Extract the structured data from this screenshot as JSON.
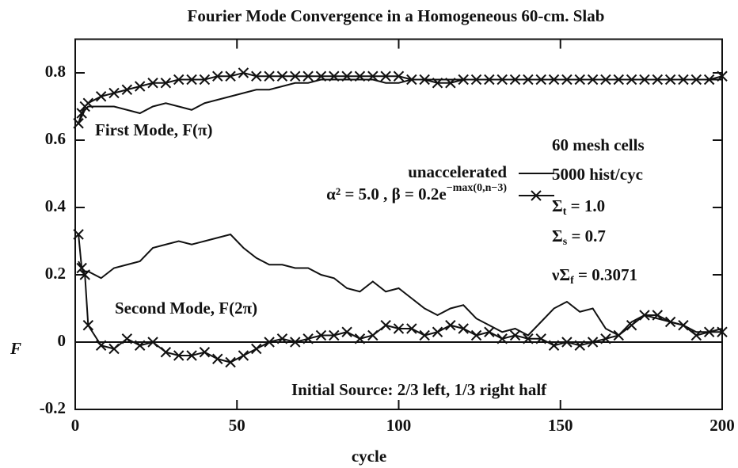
{
  "chart_data": {
    "type": "line",
    "title": "Fourier Mode Convergence in a Homogeneous 60-cm. Slab",
    "xlabel": "cycle",
    "ylabel": "F",
    "x": [
      1,
      2,
      3,
      4,
      8,
      12,
      16,
      20,
      24,
      28,
      32,
      36,
      40,
      44,
      48,
      52,
      56,
      60,
      64,
      68,
      72,
      76,
      80,
      84,
      88,
      92,
      96,
      100,
      104,
      108,
      112,
      116,
      120,
      124,
      128,
      132,
      136,
      140,
      144,
      148,
      152,
      156,
      160,
      164,
      168,
      172,
      176,
      180,
      184,
      188,
      192,
      196,
      200
    ],
    "series": [
      {
        "name": "unaccelerated",
        "color": "#111111",
        "marker": "none",
        "values": [
          0.65,
          0.67,
          0.69,
          0.7,
          0.7,
          0.7,
          0.69,
          0.68,
          0.7,
          0.71,
          0.7,
          0.69,
          0.71,
          0.72,
          0.73,
          0.74,
          0.75,
          0.75,
          0.76,
          0.77,
          0.77,
          0.78,
          0.78,
          0.78,
          0.78,
          0.78,
          0.77,
          0.77,
          0.78,
          0.78,
          0.78,
          0.78,
          0.78,
          0.78,
          0.78,
          0.78,
          0.78,
          0.78,
          0.78,
          0.78,
          0.78,
          0.78,
          0.78,
          0.78,
          0.78,
          0.78,
          0.78,
          0.78,
          0.78,
          0.78,
          0.78,
          0.78,
          0.78
        ]
      },
      {
        "name": "α² = 5.0 ,  β = 0.2e",
        "name_sup": "−max(0,n−3)",
        "color": "#111111",
        "marker": "x",
        "values": [
          0.65,
          0.68,
          0.7,
          0.71,
          0.73,
          0.74,
          0.75,
          0.76,
          0.77,
          0.77,
          0.78,
          0.78,
          0.78,
          0.79,
          0.79,
          0.8,
          0.79,
          0.79,
          0.79,
          0.79,
          0.79,
          0.79,
          0.79,
          0.79,
          0.79,
          0.79,
          0.79,
          0.79,
          0.78,
          0.78,
          0.77,
          0.77,
          0.78,
          0.78,
          0.78,
          0.78,
          0.78,
          0.78,
          0.78,
          0.78,
          0.78,
          0.78,
          0.78,
          0.78,
          0.78,
          0.78,
          0.78,
          0.78,
          0.78,
          0.78,
          0.78,
          0.78,
          0.79
        ]
      },
      {
        "name": "unaccelerated",
        "color": "#111111",
        "marker": "none",
        "values": [
          0.24,
          0.22,
          0.21,
          0.21,
          0.19,
          0.22,
          0.23,
          0.24,
          0.28,
          0.29,
          0.3,
          0.29,
          0.3,
          0.31,
          0.32,
          0.28,
          0.25,
          0.23,
          0.23,
          0.22,
          0.22,
          0.2,
          0.19,
          0.16,
          0.15,
          0.18,
          0.15,
          0.16,
          0.13,
          0.1,
          0.08,
          0.1,
          0.11,
          0.07,
          0.05,
          0.03,
          0.04,
          0.02,
          0.06,
          0.1,
          0.12,
          0.09,
          0.1,
          0.04,
          0.02,
          0.06,
          0.08,
          0.07,
          0.06,
          0.05,
          0.03,
          0.03,
          0.04
        ]
      },
      {
        "name": "α² = 5.0 ,  β = 0.2e",
        "name_sup": "−max(0,n−3)",
        "color": "#111111",
        "marker": "x",
        "values": [
          0.32,
          0.22,
          0.2,
          0.05,
          -0.01,
          -0.02,
          0.01,
          -0.01,
          0,
          -0.03,
          -0.04,
          -0.04,
          -0.03,
          -0.05,
          -0.06,
          -0.04,
          -0.02,
          0,
          0.01,
          0,
          0.01,
          0.02,
          0.02,
          0.03,
          0.01,
          0.02,
          0.05,
          0.04,
          0.04,
          0.02,
          0.03,
          0.05,
          0.04,
          0.02,
          0.03,
          0.01,
          0.02,
          0.01,
          0.01,
          -0.01,
          0,
          -0.01,
          0,
          0.01,
          0.02,
          0.05,
          0.08,
          0.08,
          0.06,
          0.05,
          0.02,
          0.03,
          0.03
        ]
      }
    ],
    "xlim": [
      0,
      200
    ],
    "ylim": [
      -0.2,
      0.9
    ],
    "xticks": [
      0,
      50,
      100,
      150,
      200
    ],
    "yticks": [
      -0.2,
      0,
      0.2,
      0.4,
      0.6,
      0.8
    ],
    "zero_line": true,
    "annotations": [
      {
        "parts": [
          {
            "text": "First Mode, F(π)"
          }
        ]
      },
      {
        "parts": [
          {
            "text": "60 mesh cells"
          }
        ]
      },
      {
        "parts": [
          {
            "text": "5000 hist/cyc"
          }
        ]
      },
      {
        "parts": [
          {
            "text": "Σ"
          },
          {
            "text": "t",
            "sub": true
          },
          {
            "text": " = 1.0"
          }
        ]
      },
      {
        "parts": [
          {
            "text": "Σ"
          },
          {
            "text": "s",
            "sub": true
          },
          {
            "text": " = 0.7"
          }
        ]
      },
      {
        "parts": [
          {
            "text": "νΣ"
          },
          {
            "text": "f",
            "sub": true
          },
          {
            "text": " = 0.3071"
          }
        ]
      },
      {
        "parts": [
          {
            "text": "Second Mode, F(2π)"
          }
        ]
      },
      {
        "parts": [
          {
            "text": "Initial Source:  2/3 left, 1/3 right half"
          }
        ]
      }
    ]
  }
}
